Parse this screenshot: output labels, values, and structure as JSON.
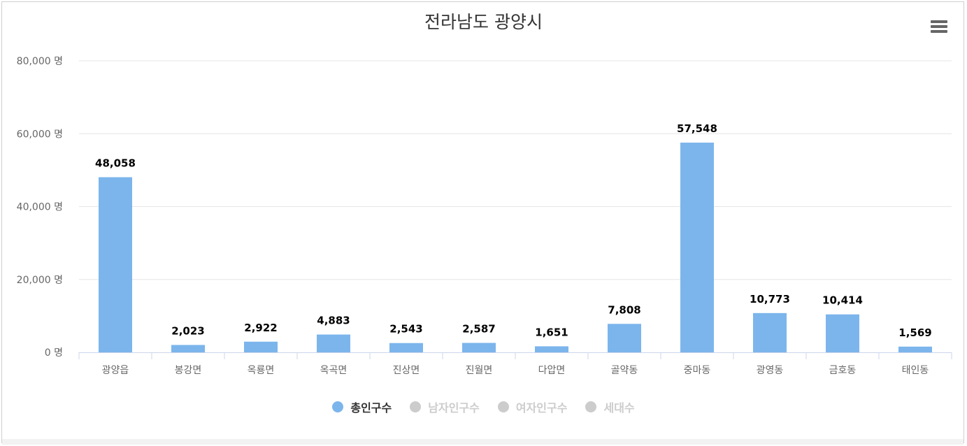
{
  "chart": {
    "title": "전라남도 광양시",
    "menu_icon": "hamburger-menu-icon"
  },
  "legend": [
    {
      "label": "총인구수",
      "color": "#7cb5ec",
      "active": true
    },
    {
      "label": "남자인구수",
      "color": "#cccccc",
      "active": false
    },
    {
      "label": "여자인구수",
      "color": "#cccccc",
      "active": false
    },
    {
      "label": "세대수",
      "color": "#cccccc",
      "active": false
    }
  ],
  "chart_data": {
    "type": "bar",
    "title": "전라남도 광양시",
    "xlabel": "",
    "ylabel": "",
    "ylim": [
      0,
      80000
    ],
    "y_ticks": [
      0,
      20000,
      40000,
      60000,
      80000
    ],
    "y_tick_labels": [
      "0 명",
      "20,000 명",
      "40,000 명",
      "60,000 명",
      "80,000 명"
    ],
    "grid": true,
    "legend_position": "bottom-center",
    "categories": [
      "광양읍",
      "봉강면",
      "옥룡면",
      "옥곡면",
      "진상면",
      "진월면",
      "다압면",
      "골약동",
      "중마동",
      "광영동",
      "금호동",
      "태인동"
    ],
    "series": [
      {
        "name": "총인구수",
        "color": "#7cb5ec",
        "values": [
          48058,
          2023,
          2922,
          4883,
          2543,
          2587,
          1651,
          7808,
          57548,
          10773,
          10414,
          1569
        ],
        "labels": [
          "48,058",
          "2,023",
          "2,922",
          "4,883",
          "2,543",
          "2,587",
          "1,651",
          "7,808",
          "57,548",
          "10,773",
          "10,414",
          "1,569"
        ]
      }
    ]
  }
}
